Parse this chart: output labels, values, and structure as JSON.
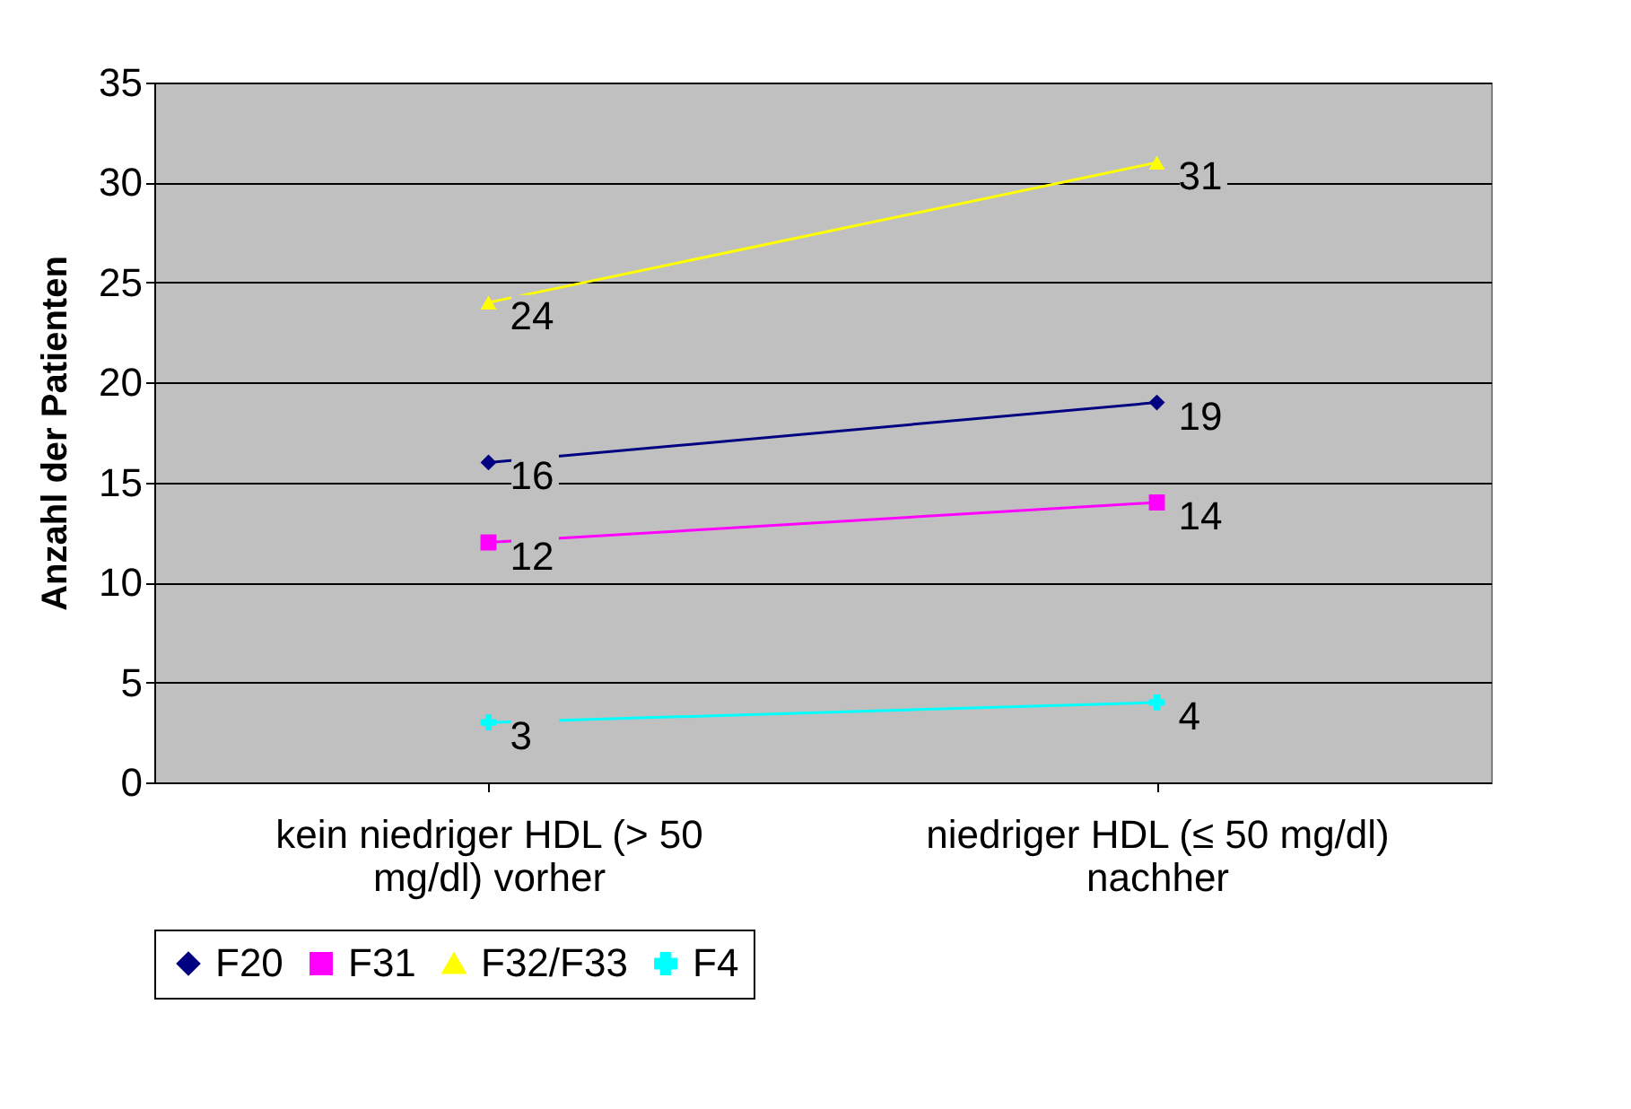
{
  "chart_data": {
    "type": "line",
    "ylabel": "Anzahl der Patienten",
    "categories": [
      "kein niedriger HDL (> 50 mg/dl) vorher",
      "niedriger HDL (≤ 50 mg/dl) nachher"
    ],
    "series": [
      {
        "name": "F20",
        "color": "#000080",
        "marker": "diamond",
        "values": [
          16,
          19
        ]
      },
      {
        "name": "F31",
        "color": "#ff00ff",
        "marker": "square",
        "values": [
          12,
          14
        ]
      },
      {
        "name": "F32/F33",
        "color": "#ffff00",
        "marker": "triangle",
        "values": [
          24,
          31
        ]
      },
      {
        "name": "F4",
        "color": "#00ffff",
        "marker": "cross",
        "values": [
          3,
          4
        ]
      }
    ],
    "ylim": [
      0,
      35
    ],
    "yticks": [
      0,
      5,
      10,
      15,
      20,
      25,
      30,
      35
    ],
    "grid": "y",
    "legend": "bottom",
    "data_labels": true
  }
}
